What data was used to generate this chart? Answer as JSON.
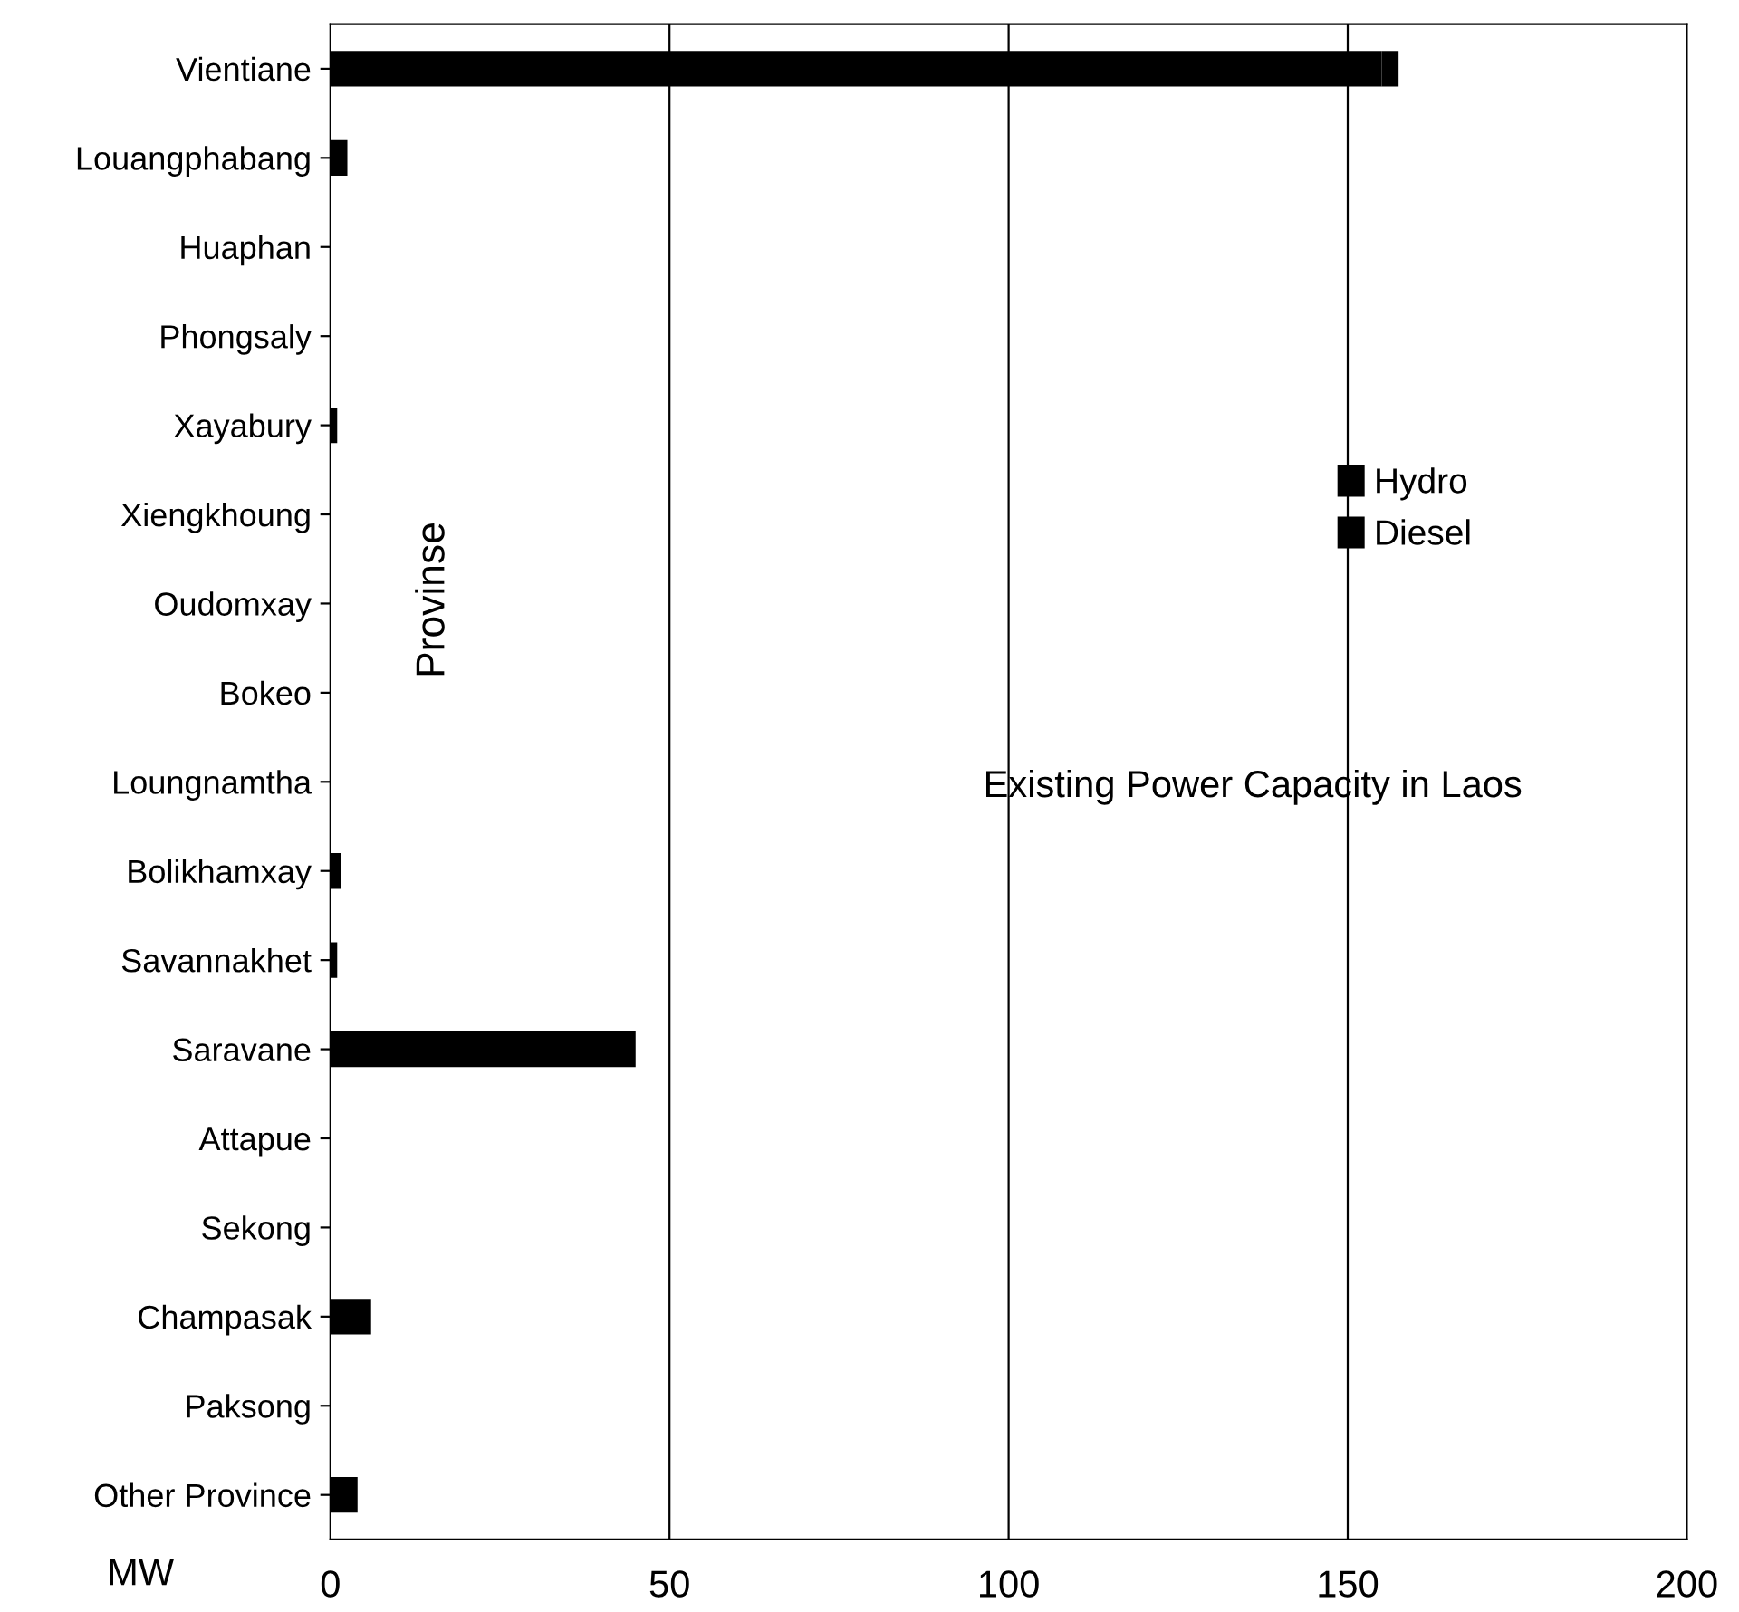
{
  "chart_data": {
    "type": "bar",
    "orientation": "horizontal",
    "stacked": true,
    "title": "Existing Power Capacity in Laos",
    "xlabel": "MW",
    "ylabel": "Provinse",
    "categories": [
      "Vientiane",
      "Louangphabang",
      "Huaphan",
      "Phongsaly",
      "Xayabury",
      "Xiengkhoung",
      "Oudomxay",
      "Bokeo",
      "Loungnamtha",
      "Bolikhamxay",
      "Savannakhet",
      "Saravane",
      "Attapue",
      "Sekong",
      "Champasak",
      "Paksong",
      "Other Province"
    ],
    "series": [
      {
        "name": "Hydro",
        "color": "#000000",
        "values": [
          155,
          0,
          0,
          0,
          0,
          0,
          0,
          0,
          0,
          0,
          0,
          45,
          0,
          0,
          0,
          0,
          0
        ]
      },
      {
        "name": "Diesel",
        "color": "#000000",
        "values": [
          2.5,
          2.5,
          0,
          0,
          1,
          0,
          0,
          0,
          0,
          1.5,
          1,
          0,
          0,
          0,
          6,
          0,
          4
        ]
      }
    ],
    "xlim": [
      0,
      200
    ],
    "xticks": [
      0,
      50,
      100,
      150,
      200
    ],
    "grid": "x",
    "legend": "right"
  }
}
